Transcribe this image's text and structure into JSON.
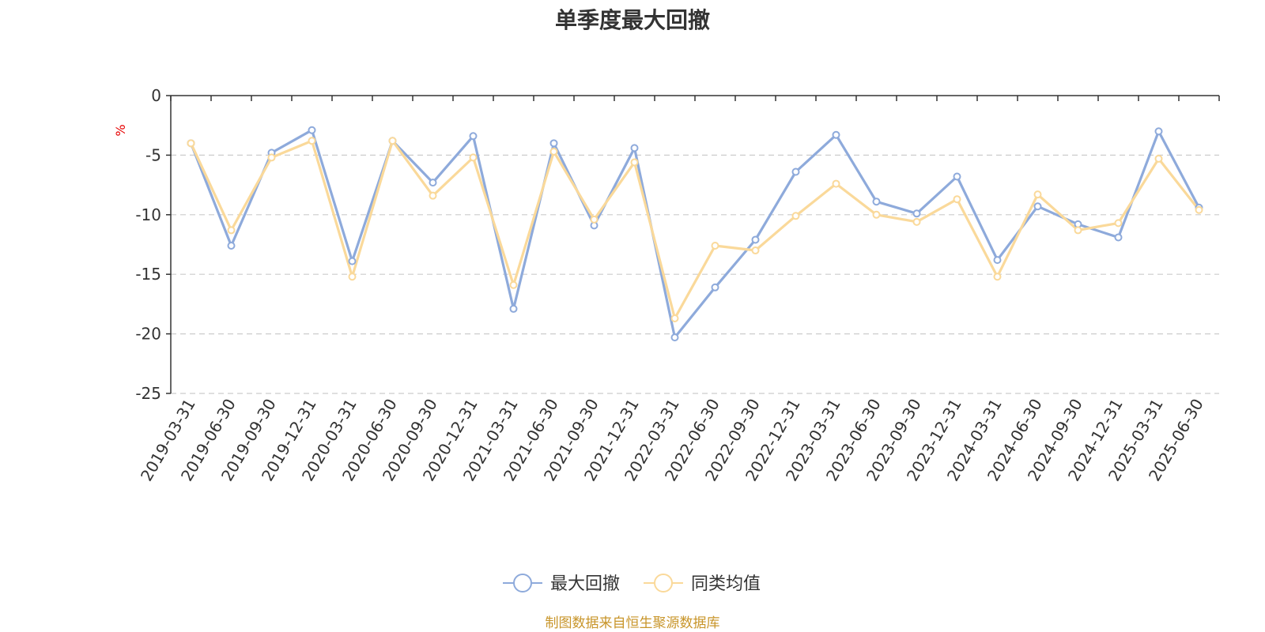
{
  "chart_data": {
    "type": "line",
    "title": "单季度最大回撤",
    "ylabel": "%",
    "ylim": [
      -25,
      0
    ],
    "yticks": [
      0,
      -5,
      -10,
      -15,
      -20,
      -25
    ],
    "grid": true,
    "legend_position": "bottom-center",
    "x": [
      "2019-03-31",
      "2019-06-30",
      "2019-09-30",
      "2019-12-31",
      "2020-03-31",
      "2020-06-30",
      "2020-09-30",
      "2020-12-31",
      "2021-03-31",
      "2021-06-30",
      "2021-09-30",
      "2021-12-31",
      "2022-03-31",
      "2022-06-30",
      "2022-09-30",
      "2022-12-31",
      "2023-03-31",
      "2023-06-30",
      "2023-09-30",
      "2023-12-31",
      "2024-03-31",
      "2024-06-30",
      "2024-09-30",
      "2024-12-31",
      "2025-03-31",
      "2025-06-30"
    ],
    "series": [
      {
        "name": "最大回撤",
        "color": "#8eaadb",
        "values": [
          -4.0,
          -12.6,
          -4.8,
          -2.9,
          -13.9,
          -3.8,
          -7.3,
          -3.4,
          -17.9,
          -4.0,
          -10.9,
          -4.4,
          -20.3,
          -16.1,
          -12.1,
          -6.4,
          -3.3,
          -8.9,
          -9.9,
          -6.8,
          -13.8,
          -9.3,
          -10.8,
          -11.9,
          -3.0,
          -9.4
        ]
      },
      {
        "name": "同类均值",
        "color": "#fad99a",
        "values": [
          -4.0,
          -11.3,
          -5.2,
          -3.8,
          -15.2,
          -3.8,
          -8.4,
          -5.2,
          -15.9,
          -4.7,
          -10.4,
          -5.6,
          -18.7,
          -12.6,
          -13.0,
          -10.1,
          -7.4,
          -10.0,
          -10.6,
          -8.7,
          -15.2,
          -8.3,
          -11.3,
          -10.7,
          -5.3,
          -9.6
        ]
      }
    ]
  },
  "footer": {
    "source": "制图数据来自恒生聚源数据库"
  }
}
